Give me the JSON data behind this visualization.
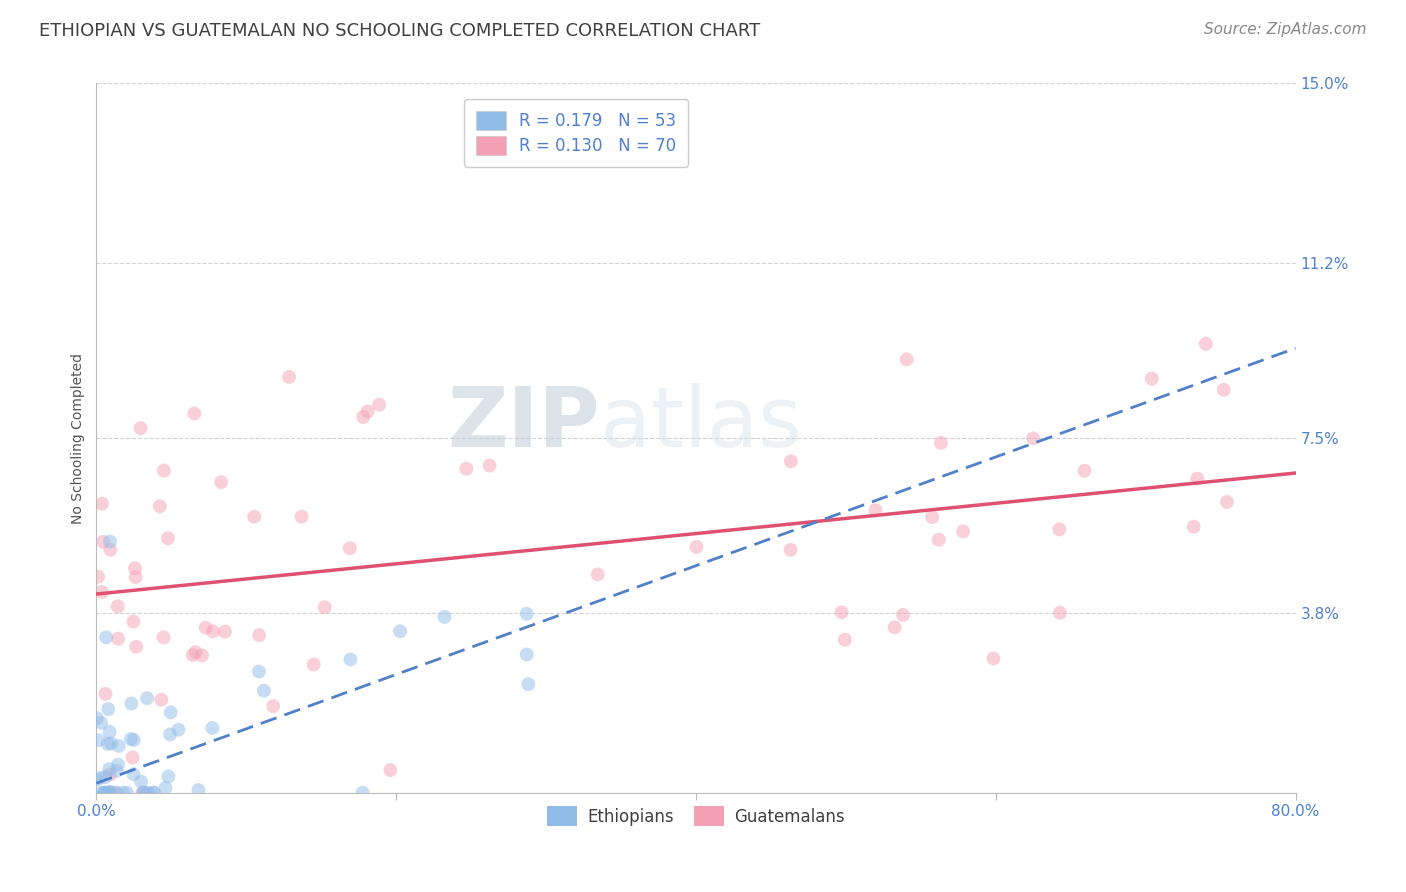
{
  "title": "ETHIOPIAN VS GUATEMALAN NO SCHOOLING COMPLETED CORRELATION CHART",
  "source": "Source: ZipAtlas.com",
  "ylabel": "No Schooling Completed",
  "xlabel": "",
  "watermark_zip": "ZIP",
  "watermark_atlas": "atlas",
  "xlim": [
    0.0,
    0.8
  ],
  "ylim": [
    0.0,
    0.15
  ],
  "xticks": [
    0.0,
    0.2,
    0.4,
    0.6,
    0.8
  ],
  "xtick_labels": [
    "0.0%",
    "",
    "",
    "",
    "80.0%"
  ],
  "yticks": [
    0.0,
    0.038,
    0.075,
    0.112,
    0.15
  ],
  "ytick_labels": [
    "",
    "3.8%",
    "7.5%",
    "11.2%",
    "15.0%"
  ],
  "eth_legend_label": "R = 0.179   N = 53",
  "guat_legend_label": "R = 0.130   N = 70",
  "ethiopians_N": 53,
  "guatemalans_N": 70,
  "eth_color": "#90bce8",
  "guat_color": "#f4a0b4",
  "eth_line_color": "#5080c8",
  "guat_line_color": "#e05070",
  "background_color": "#ffffff",
  "grid_color": "#c8c8c8",
  "axis_label_color": "#5080d0",
  "title_color": "#404040",
  "source_color": "#888888",
  "title_fontsize": 13,
  "source_fontsize": 11,
  "label_fontsize": 10,
  "tick_fontsize": 11,
  "legend_fontsize": 12,
  "eth_seed": 42,
  "guat_seed": 99,
  "eth_intercept": 0.002,
  "eth_slope": 0.115,
  "guat_intercept": 0.042,
  "guat_slope": 0.032,
  "marker_size": 100,
  "marker_alpha": 0.5
}
